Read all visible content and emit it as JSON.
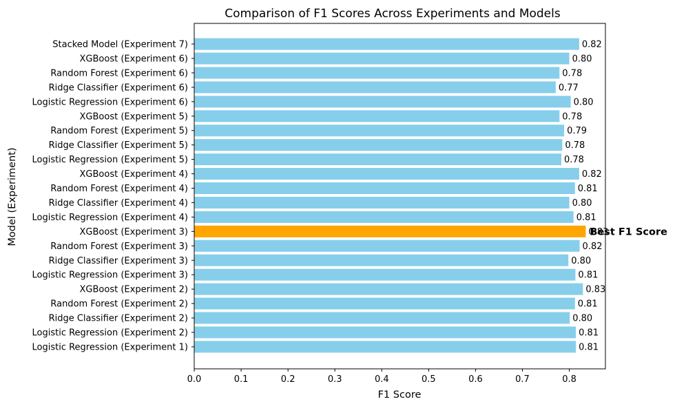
{
  "chart_data": {
    "type": "bar",
    "orientation": "horizontal",
    "title": "Comparison of F1 Scores Across Experiments and Models",
    "xlabel": "F1 Score",
    "ylabel": "Model (Experiment)",
    "xlim": [
      0,
      0.877
    ],
    "xticks": [
      0.0,
      0.1,
      0.2,
      0.3,
      0.4,
      0.5,
      0.6,
      0.7,
      0.8
    ],
    "grid": false,
    "bar_color": "#87CEEB",
    "highlight_color": "#FFA500",
    "categories": [
      "Logistic Regression (Experiment 1)",
      "Logistic Regression (Experiment 2)",
      "Ridge Classifier (Experiment 2)",
      "Random Forest (Experiment 2)",
      "XGBoost (Experiment 2)",
      "Logistic Regression (Experiment 3)",
      "Ridge Classifier (Experiment 3)",
      "Random Forest (Experiment 3)",
      "XGBoost (Experiment 3)",
      "Logistic Regression (Experiment 4)",
      "Ridge Classifier (Experiment 4)",
      "Random Forest (Experiment 4)",
      "XGBoost (Experiment 4)",
      "Logistic Regression (Experiment 5)",
      "Ridge Classifier (Experiment 5)",
      "Random Forest (Experiment 5)",
      "XGBoost (Experiment 5)",
      "Logistic Regression (Experiment 6)",
      "Ridge Classifier (Experiment 6)",
      "Random Forest (Experiment 6)",
      "XGBoost (Experiment 6)",
      "Stacked Model (Experiment 7)"
    ],
    "values": [
      0.814,
      0.814,
      0.801,
      0.812,
      0.829,
      0.813,
      0.798,
      0.822,
      0.835,
      0.809,
      0.8,
      0.812,
      0.821,
      0.783,
      0.785,
      0.789,
      0.779,
      0.803,
      0.771,
      0.779,
      0.8,
      0.821
    ],
    "value_labels": [
      "0.81",
      "0.81",
      "0.80",
      "0.81",
      "0.83",
      "0.81",
      "0.80",
      "0.82",
      "0.83",
      "0.81",
      "0.80",
      "0.81",
      "0.82",
      "0.78",
      "0.78",
      "0.79",
      "0.78",
      "0.80",
      "0.77",
      "0.78",
      "0.80",
      "0.82"
    ],
    "highlight_index": 8,
    "annotation": "Best F1 Score"
  }
}
